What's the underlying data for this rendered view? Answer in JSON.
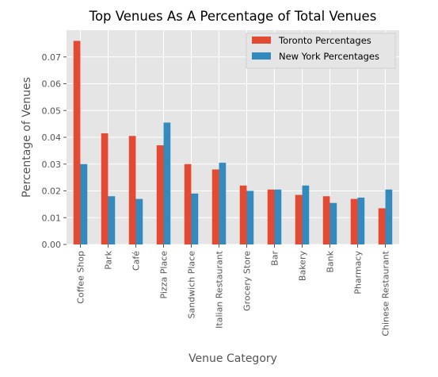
{
  "chart_data": {
    "type": "bar",
    "title": "Top Venues As A Percentage of Total Venues",
    "xlabel": "Venue Category",
    "ylabel": "Percentage of Venues",
    "categories": [
      "Coffee Shop",
      "Park",
      "Café",
      "Pizza Place",
      "Sandwich Place",
      "Italian Restaurant",
      "Grocery Store",
      "Bar",
      "Bakery",
      "Bank",
      "Pharmacy",
      "Chinese Restaurant"
    ],
    "series": [
      {
        "name": "Toronto Percentages",
        "color": "#e24a33",
        "values": [
          0.076,
          0.0415,
          0.0405,
          0.037,
          0.03,
          0.028,
          0.022,
          0.0205,
          0.0185,
          0.018,
          0.017,
          0.0135
        ]
      },
      {
        "name": "New York Percentages",
        "color": "#348abd",
        "values": [
          0.03,
          0.018,
          0.017,
          0.0455,
          0.019,
          0.0305,
          0.02,
          0.0205,
          0.022,
          0.0155,
          0.0175,
          0.0205
        ]
      }
    ],
    "yticks": [
      "0.00",
      "0.01",
      "0.02",
      "0.03",
      "0.04",
      "0.05",
      "0.06",
      "0.07"
    ],
    "ylim": [
      0,
      0.08
    ],
    "grid": true,
    "legend_position": "top-right"
  }
}
